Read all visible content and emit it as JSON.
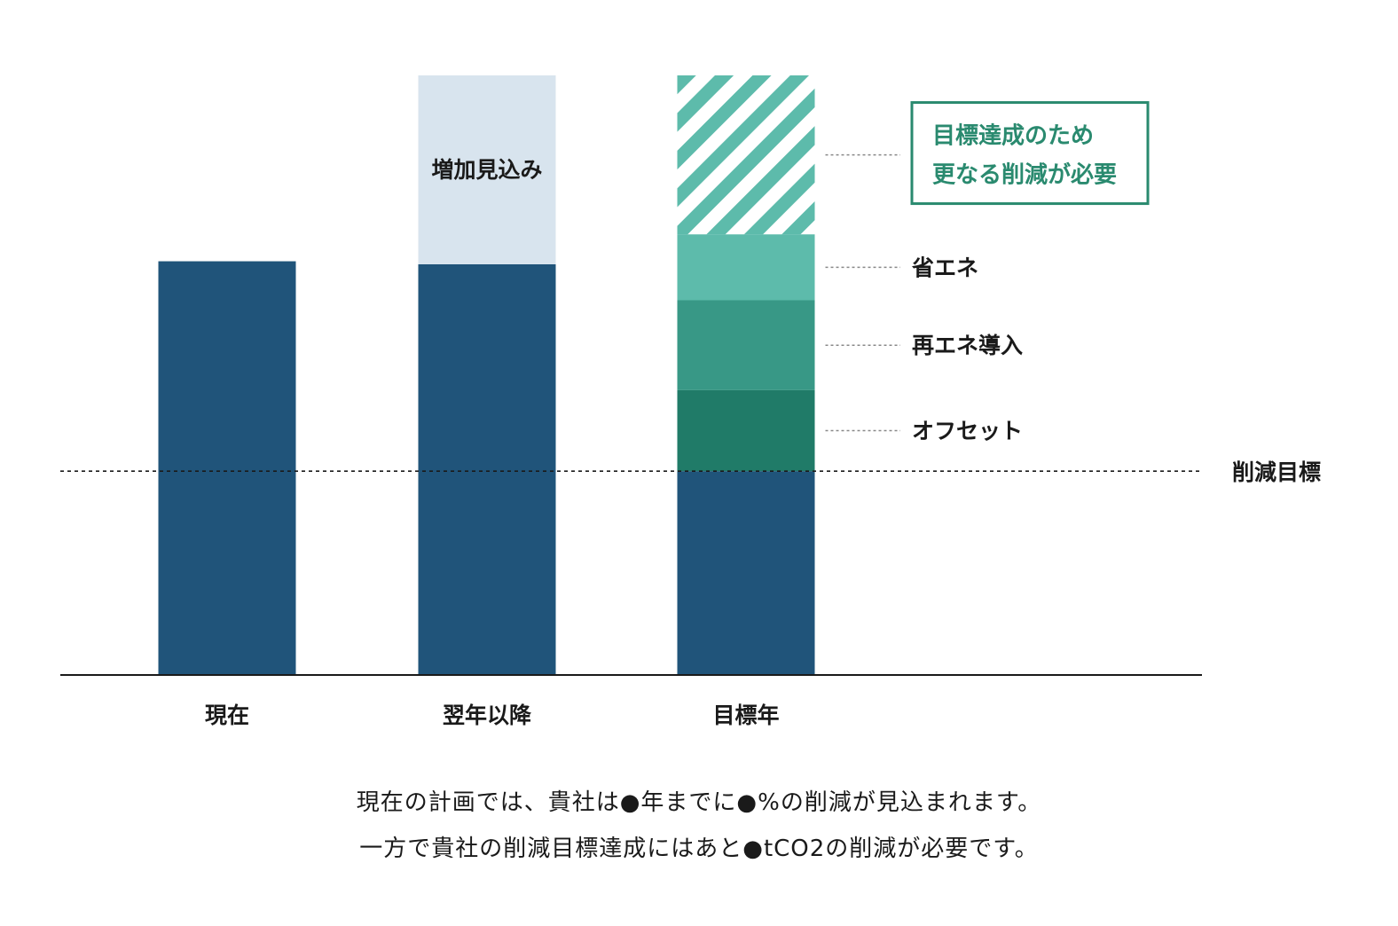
{
  "chart_data": {
    "type": "bar",
    "stacked": true,
    "categories": [
      "現在",
      "翌年以降",
      "目標年"
    ],
    "ylim": [
      0,
      100
    ],
    "target_line": {
      "label": "削減目標",
      "value": 34
    },
    "series": [
      {
        "key": "base",
        "color": "#20547a",
        "values": [
          69,
          68.5,
          34
        ]
      },
      {
        "key": "increase",
        "color": "#d8e4ee",
        "values": [
          0,
          31.5,
          0
        ],
        "inline_label": "増加見込み"
      },
      {
        "key": "offset",
        "label": "オフセット",
        "color": "#207b68",
        "values": [
          0,
          0,
          13.5
        ]
      },
      {
        "key": "renewable",
        "label": "再エネ導入",
        "color": "#389886",
        "values": [
          0,
          0,
          15
        ]
      },
      {
        "key": "energy_saving",
        "label": "省エネ",
        "color": "#5dbbab",
        "values": [
          0,
          0,
          11
        ]
      },
      {
        "key": "additional",
        "color": "#5dbbab",
        "pattern": "diagonal-stripes",
        "values": [
          0,
          0,
          26.5
        ]
      }
    ],
    "callout": {
      "lines": [
        "目標達成のため",
        "更なる削減が必要"
      ],
      "color": "#2a8a6f"
    }
  },
  "caption": {
    "line1": "現在の計画では、貴社は●年までに●%の削減が見込まれます。",
    "line2": "一方で貴社の削減目標達成にはあと●tCO2の削減が必要です。"
  }
}
